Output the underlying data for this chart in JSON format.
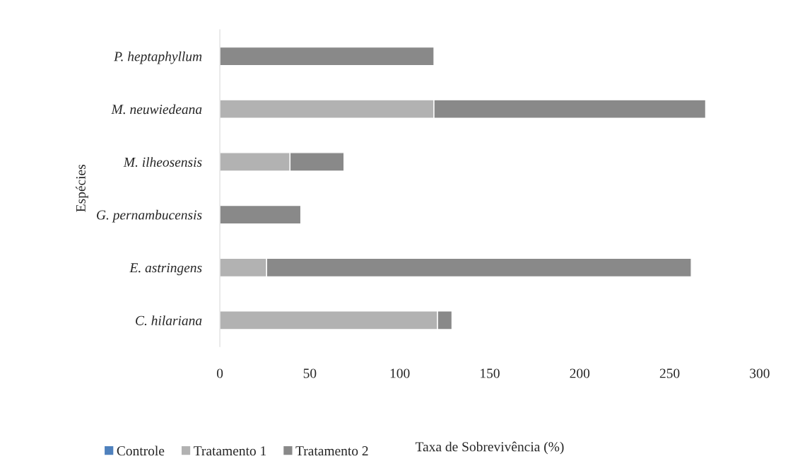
{
  "chart_data": {
    "type": "bar",
    "orientation": "horizontal",
    "stacked": true,
    "xlabel": "Taxa de Sobrevivência (%)",
    "ylabel": "Espécies",
    "categories": [
      "P. heptaphyllum",
      "M. neuwiedeana",
      "M. ilheosensis",
      "G. pernambucensis",
      "E. astringens",
      "C. hilariana"
    ],
    "series": [
      {
        "name": "Controle",
        "color": "#4f81bd",
        "values": [
          0,
          0,
          0,
          0,
          0,
          0
        ]
      },
      {
        "name": "Tratamento 1",
        "color": "#b2b2b2",
        "values": [
          0,
          119,
          39,
          0,
          26,
          121
        ]
      },
      {
        "name": "Tratamento 2",
        "color": "#898989",
        "values": [
          119,
          151,
          30,
          45,
          236,
          8
        ]
      }
    ],
    "xlim": [
      0,
      300
    ],
    "xticks": [
      0,
      50,
      100,
      150,
      200,
      250,
      300
    ],
    "grid": false,
    "legend": "bottom"
  }
}
